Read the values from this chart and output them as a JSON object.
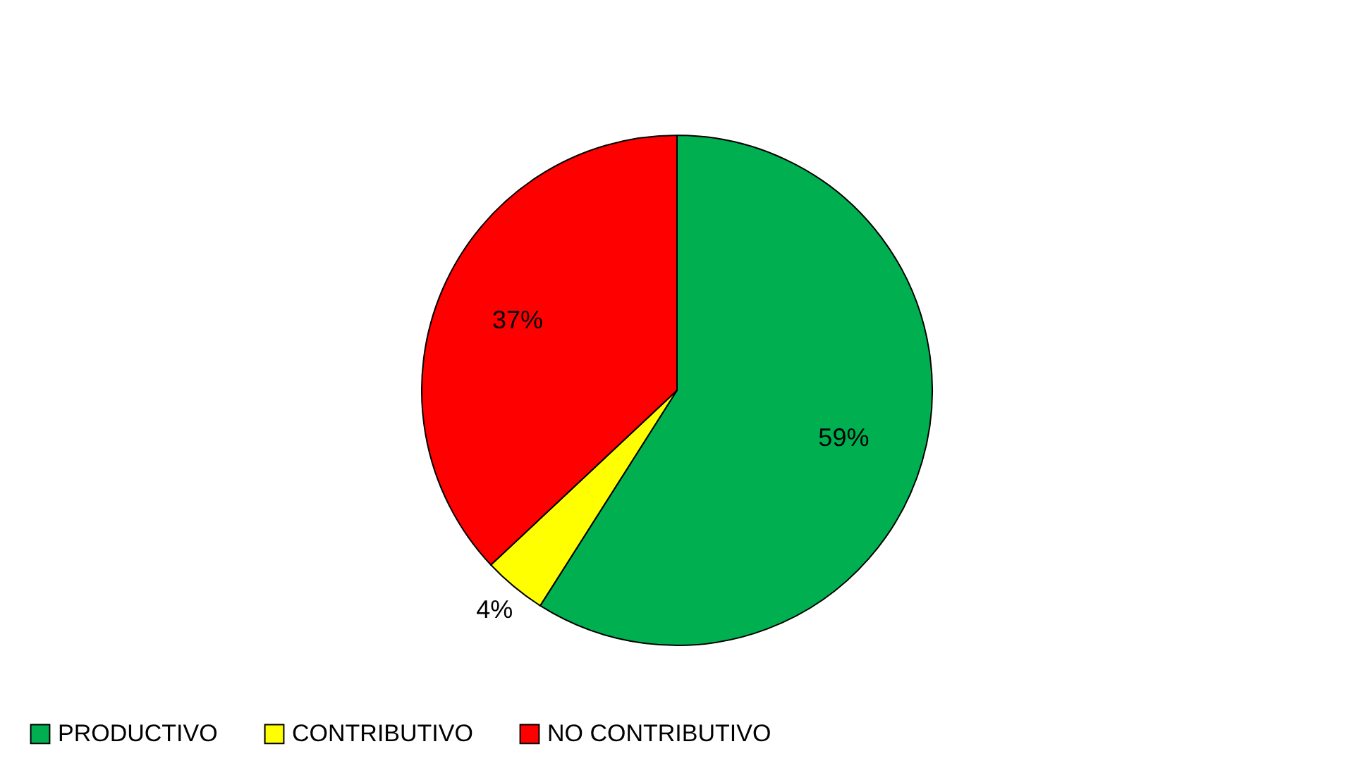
{
  "chart_data": {
    "type": "pie",
    "categories": [
      "PRODUCTIVO",
      "CONTRIBUTIVO",
      "NO CONTRIBUTIVO"
    ],
    "values": [
      59,
      4,
      37
    ],
    "colors": [
      "#00b050",
      "#ffff00",
      "#ff0000"
    ],
    "value_labels": [
      "59%",
      "4%",
      "37%"
    ],
    "legend": "bottom"
  }
}
